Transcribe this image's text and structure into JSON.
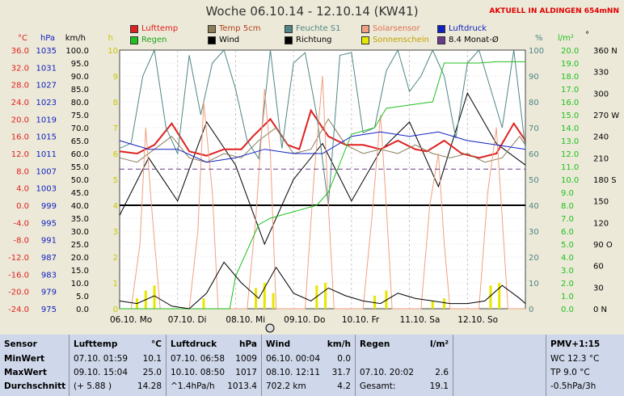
{
  "title": "Woche 06.10.14 - 12.10.14 (KW41)",
  "location": "AKTUELL IN ALDINGEN 654mNN",
  "legend": [
    {
      "label": "Lufttemp",
      "color": "#e02020"
    },
    {
      "label": "Temp 5cm",
      "color": "#8b7d5a"
    },
    {
      "label": "Feuchte S1",
      "color": "#4f8585"
    },
    {
      "label": "Solarsensor",
      "color": "#f0a080"
    },
    {
      "label": "Luftdruck",
      "color": "#1020c0"
    },
    {
      "label": "Regen",
      "color": "#20c020"
    },
    {
      "label": "Wind",
      "color": "#000000"
    },
    {
      "label": "Richtung",
      "color": "#000000"
    },
    {
      "label": "Sonnenschein",
      "color": "#e6e600"
    },
    {
      "label": "8.4 Monat-Ø",
      "color": "#6a3a8a"
    }
  ],
  "axis_headers": {
    "temp": "°C",
    "pressure": "hPa",
    "wind": "km/h",
    "sun": "h",
    "humidity": "%",
    "rain": "l/m²",
    "dir": "°"
  },
  "chart_data": {
    "type": "line",
    "title": "Woche 06.10.14 - 12.10.14 (KW41)",
    "x_days": [
      "06.10. Mo",
      "07.10. Di",
      "08.10. Mi",
      "09.10. Do",
      "10.10. Fr",
      "11.10. Sa",
      "12.10. So"
    ],
    "axes": {
      "temp": {
        "unit": "°C",
        "min": -24,
        "max": 36,
        "ticks": [
          "36.0",
          "32.0",
          "28.0",
          "24.0",
          "20.0",
          "16.0",
          "12.0",
          "8.0",
          "4.0",
          "0.0",
          "-4.0",
          "-8.0",
          "-12.0",
          "-16.0",
          "-20.0",
          "-24.0"
        ]
      },
      "pressure": {
        "unit": "hPa",
        "min": 975,
        "max": 1035,
        "ticks": [
          "1035",
          "1031",
          "1027",
          "1023",
          "1019",
          "1015",
          "1011",
          "1007",
          "1003",
          "999",
          "995",
          "991",
          "987",
          "983",
          "979",
          "975"
        ]
      },
      "wind": {
        "unit": "km/h",
        "min": 0,
        "max": 100,
        "ticks": [
          "100.0",
          "95.0",
          "90.0",
          "85.0",
          "80.0",
          "75.0",
          "70.0",
          "65.0",
          "60.0",
          "55.0",
          "50.0",
          "45.0",
          "40.0",
          "35.0",
          "30.0",
          "25.0",
          "20.0",
          "15.0",
          "10.0",
          "5.0",
          "0.0"
        ]
      },
      "sun": {
        "unit": "h",
        "min": 0,
        "max": 10,
        "ticks": [
          "10",
          "9",
          "8",
          "7",
          "6",
          "5",
          "4",
          "3",
          "2",
          "1",
          "0"
        ]
      },
      "humidity": {
        "unit": "%",
        "min": 0,
        "max": 100,
        "ticks": [
          "100",
          "90",
          "80",
          "70",
          "60",
          "50",
          "40",
          "30",
          "20",
          "10",
          "0"
        ]
      },
      "rain": {
        "unit": "l/m²",
        "min": 0,
        "max": 20,
        "ticks": [
          "20.0",
          "19.0",
          "18.0",
          "17.0",
          "16.0",
          "15.0",
          "14.0",
          "13.0",
          "12.0",
          "11.0",
          "10.0",
          "9.0",
          "8.0",
          "7.0",
          "6.0",
          "5.0",
          "4.0",
          "3.0",
          "2.0",
          "1.0",
          "0.0"
        ]
      },
      "direction": {
        "unit": "°",
        "ticks": [
          "360 N",
          "330",
          "300",
          "270 W",
          "240",
          "210",
          "180 S",
          "150",
          "120",
          "90 O",
          "60",
          "30",
          "0 N"
        ]
      }
    },
    "series": [
      {
        "name": "Lufttemp",
        "axis": "temp",
        "x": [
          0,
          0.3,
          0.6,
          0.9,
          1.2,
          1.5,
          1.8,
          2.1,
          2.3,
          2.6,
          2.9,
          3.1,
          3.3,
          3.6,
          3.9,
          4.2,
          4.5,
          4.8,
          5.1,
          5.3,
          5.6,
          5.9,
          6.2,
          6.5,
          6.8,
          7.0
        ],
        "values": [
          12.5,
          12,
          14,
          19,
          12.5,
          11.5,
          13,
          13,
          16,
          20,
          14,
          13,
          22,
          16,
          14,
          14,
          13,
          15,
          13,
          12.5,
          15,
          12,
          11,
          12,
          19,
          15
        ]
      },
      {
        "name": "Temp 5cm",
        "axis": "temp",
        "x": [
          0,
          0.3,
          0.6,
          0.9,
          1.2,
          1.5,
          1.8,
          2.1,
          2.4,
          2.7,
          3.0,
          3.3,
          3.6,
          3.9,
          4.2,
          4.5,
          4.8,
          5.1,
          5.4,
          5.7,
          6.0,
          6.3,
          6.6,
          6.9,
          7.0
        ],
        "values": [
          11,
          10,
          13,
          16,
          11,
          10,
          12,
          11,
          15,
          18,
          12,
          13,
          20,
          14,
          12,
          13,
          12,
          14,
          12,
          11,
          12,
          10,
          11,
          16,
          14
        ]
      },
      {
        "name": "Feuchte S1",
        "axis": "humidity",
        "x": [
          0,
          0.2,
          0.4,
          0.6,
          0.8,
          1.0,
          1.2,
          1.4,
          1.6,
          1.8,
          2.0,
          2.2,
          2.4,
          2.6,
          2.8,
          3.0,
          3.2,
          3.4,
          3.6,
          3.8,
          4.0,
          4.2,
          4.4,
          4.6,
          4.8,
          5.0,
          5.2,
          5.4,
          5.6,
          5.8,
          6.0,
          6.2,
          6.4,
          6.6,
          6.8,
          7.0
        ],
        "values": [
          62,
          64,
          90,
          100,
          70,
          60,
          98,
          75,
          95,
          100,
          85,
          65,
          58,
          100,
          62,
          95,
          99,
          75,
          40,
          98,
          99,
          68,
          70,
          92,
          100,
          84,
          90,
          100,
          90,
          66,
          95,
          100,
          85,
          70,
          100,
          62
        ]
      },
      {
        "name": "Solarsensor",
        "axis": "wind",
        "x": [
          0,
          0.2,
          0.35,
          0.45,
          0.55,
          0.7,
          1.0,
          1.2,
          1.35,
          1.45,
          1.6,
          1.7,
          2.0,
          2.2,
          2.35,
          2.5,
          2.6,
          2.7,
          3.0,
          3.2,
          3.35,
          3.5,
          3.6,
          3.7,
          4.0,
          4.2,
          4.35,
          4.5,
          4.6,
          4.7,
          5.0,
          5.2,
          5.35,
          5.5,
          5.6,
          5.7,
          6.0,
          6.2,
          6.35,
          6.5,
          6.6,
          6.7,
          7.0
        ],
        "values": [
          0,
          0,
          25,
          70,
          40,
          0,
          0,
          0,
          30,
          80,
          45,
          0,
          0,
          0,
          35,
          85,
          60,
          0,
          0,
          0,
          50,
          90,
          40,
          0,
          0,
          0,
          35,
          75,
          40,
          0,
          0,
          0,
          40,
          60,
          25,
          0,
          0,
          0,
          45,
          70,
          35,
          0,
          0
        ]
      },
      {
        "name": "Luftdruck",
        "axis": "pressure",
        "x": [
          0,
          0.5,
          1.0,
          1.5,
          2.0,
          2.5,
          3.0,
          3.5,
          4.0,
          4.5,
          5.0,
          5.5,
          6.0,
          6.5,
          7.0
        ],
        "values": [
          1014,
          1012,
          1012,
          1009,
          1010,
          1012,
          1011,
          1011,
          1015,
          1016,
          1015,
          1016,
          1014,
          1013,
          1012
        ]
      },
      {
        "name": "Regen",
        "axis": "rain",
        "x": [
          0,
          1.9,
          2.0,
          2.4,
          2.6,
          3.4,
          3.6,
          4.0,
          4.4,
          4.6,
          5.4,
          5.6,
          6.2,
          6.5,
          7.0
        ],
        "values": [
          0,
          0,
          2.5,
          6.5,
          7.0,
          8.0,
          9.0,
          13.5,
          14.0,
          15.5,
          16.0,
          19.0,
          19.0,
          19.1,
          19.1
        ]
      },
      {
        "name": "Wind",
        "axis": "wind",
        "x": [
          0,
          0.3,
          0.6,
          0.9,
          1.2,
          1.5,
          1.8,
          2.1,
          2.4,
          2.7,
          3.0,
          3.3,
          3.6,
          3.9,
          4.2,
          4.5,
          4.8,
          5.1,
          5.4,
          5.7,
          6.0,
          6.3,
          6.6,
          6.9,
          7.0
        ],
        "values": [
          3,
          2,
          5,
          1,
          0,
          6,
          18,
          10,
          4,
          16,
          6,
          3,
          8,
          5,
          3,
          2,
          6,
          4,
          3,
          2,
          2,
          3,
          9,
          4,
          2
        ]
      },
      {
        "name": "8.4 Monat-Ø",
        "axis": "temp",
        "x": [
          0,
          7
        ],
        "values": [
          8.4,
          8.4
        ]
      }
    ],
    "sunshine": {
      "x": [
        0.3,
        0.45,
        0.6,
        1.45,
        2.35,
        2.5,
        2.65,
        3.4,
        3.55,
        4.4,
        4.6,
        5.4,
        5.6,
        6.4,
        6.55
      ],
      "values": [
        0.4,
        0.7,
        0.9,
        0.4,
        0.8,
        1.0,
        0.6,
        0.9,
        1.0,
        0.5,
        0.7,
        0.3,
        0.4,
        0.9,
        1.0
      ]
    },
    "direction_series": {
      "x": [
        0,
        0.5,
        1.0,
        1.5,
        2.0,
        2.5,
        3.0,
        3.5,
        4.0,
        4.5,
        5.0,
        5.5,
        6.0,
        6.5,
        7.0
      ],
      "values": [
        130,
        210,
        150,
        260,
        200,
        90,
        180,
        230,
        150,
        220,
        260,
        170,
        300,
        230,
        200
      ]
    }
  },
  "table": {
    "sensor": {
      "header": "Sensor",
      "rows": [
        "MinWert",
        "MaxWert",
        "Durchschnitt"
      ]
    },
    "temp": {
      "header": "Lufttemp",
      "unit": "°C",
      "rows": [
        [
          "07.10.  01:59",
          "10.1"
        ],
        [
          "09.10.  15:04",
          "25.0"
        ],
        [
          "(+ 5.88 )",
          "14.28"
        ]
      ]
    },
    "pressure": {
      "header": "Luftdruck",
      "unit": "hPa",
      "rows": [
        [
          "07.10.  06:58",
          "1009"
        ],
        [
          "10.10.  08:50",
          "1017"
        ],
        [
          "^1.4hPa/h",
          "1013.4"
        ]
      ]
    },
    "wind": {
      "header": "Wind",
      "unit": "km/h",
      "rows": [
        [
          "06.10.  00:04",
          "0.0"
        ],
        [
          "08.10.  12:11",
          "31.7"
        ],
        [
          "702.2 km",
          "4.2"
        ]
      ]
    },
    "rain": {
      "header": "Regen",
      "unit": "l/m²",
      "rows": [
        [
          "",
          ""
        ],
        [
          "07.10.  20:02",
          "2.6"
        ],
        [
          "Gesamt:",
          "19.1"
        ]
      ]
    },
    "pmv": {
      "header": "PMV+1:15",
      "rows": [
        "WC 12.3 °C",
        "TP 9.0 °C",
        "-0.5hPa/3h"
      ]
    }
  }
}
